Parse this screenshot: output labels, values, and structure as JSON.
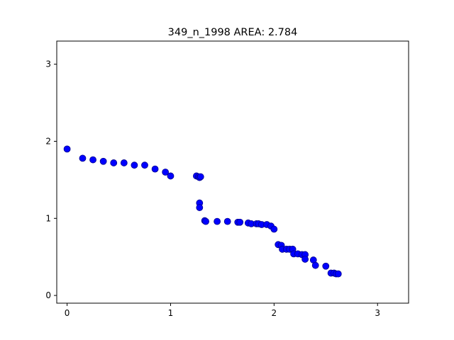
{
  "chart_data": {
    "type": "scatter",
    "title": "349_n_1998 AREA: 2.784",
    "xlabel": "",
    "ylabel": "",
    "xlim": [
      -0.1,
      3.3
    ],
    "ylim": [
      -0.1,
      3.3
    ],
    "x_ticks": [
      0,
      1,
      2,
      3
    ],
    "y_ticks": [
      0,
      1,
      2,
      3
    ],
    "grid": false,
    "marker_color": "#0000ff",
    "marker_edge_color": "#00008b",
    "points": [
      [
        0.0,
        1.9
      ],
      [
        0.15,
        1.78
      ],
      [
        0.25,
        1.76
      ],
      [
        0.35,
        1.74
      ],
      [
        0.45,
        1.72
      ],
      [
        0.55,
        1.72
      ],
      [
        0.65,
        1.69
      ],
      [
        0.75,
        1.69
      ],
      [
        0.85,
        1.64
      ],
      [
        0.95,
        1.6
      ],
      [
        1.0,
        1.55
      ],
      [
        1.25,
        1.55
      ],
      [
        1.27,
        1.54
      ],
      [
        1.28,
        1.53
      ],
      [
        1.29,
        1.54
      ],
      [
        1.28,
        1.2
      ],
      [
        1.28,
        1.14
      ],
      [
        1.33,
        0.97
      ],
      [
        1.34,
        0.96
      ],
      [
        1.45,
        0.96
      ],
      [
        1.55,
        0.96
      ],
      [
        1.65,
        0.95
      ],
      [
        1.67,
        0.95
      ],
      [
        1.75,
        0.94
      ],
      [
        1.78,
        0.93
      ],
      [
        1.83,
        0.93
      ],
      [
        1.85,
        0.93
      ],
      [
        1.88,
        0.92
      ],
      [
        1.93,
        0.92
      ],
      [
        1.97,
        0.9
      ],
      [
        2.0,
        0.86
      ],
      [
        2.04,
        0.66
      ],
      [
        2.07,
        0.65
      ],
      [
        2.08,
        0.6
      ],
      [
        2.12,
        0.6
      ],
      [
        2.15,
        0.6
      ],
      [
        2.18,
        0.6
      ],
      [
        2.19,
        0.54
      ],
      [
        2.23,
        0.54
      ],
      [
        2.27,
        0.53
      ],
      [
        2.3,
        0.53
      ],
      [
        2.3,
        0.47
      ],
      [
        2.38,
        0.46
      ],
      [
        2.4,
        0.39
      ],
      [
        2.5,
        0.38
      ],
      [
        2.55,
        0.29
      ],
      [
        2.58,
        0.29
      ],
      [
        2.6,
        0.28
      ],
      [
        2.62,
        0.28
      ]
    ]
  }
}
